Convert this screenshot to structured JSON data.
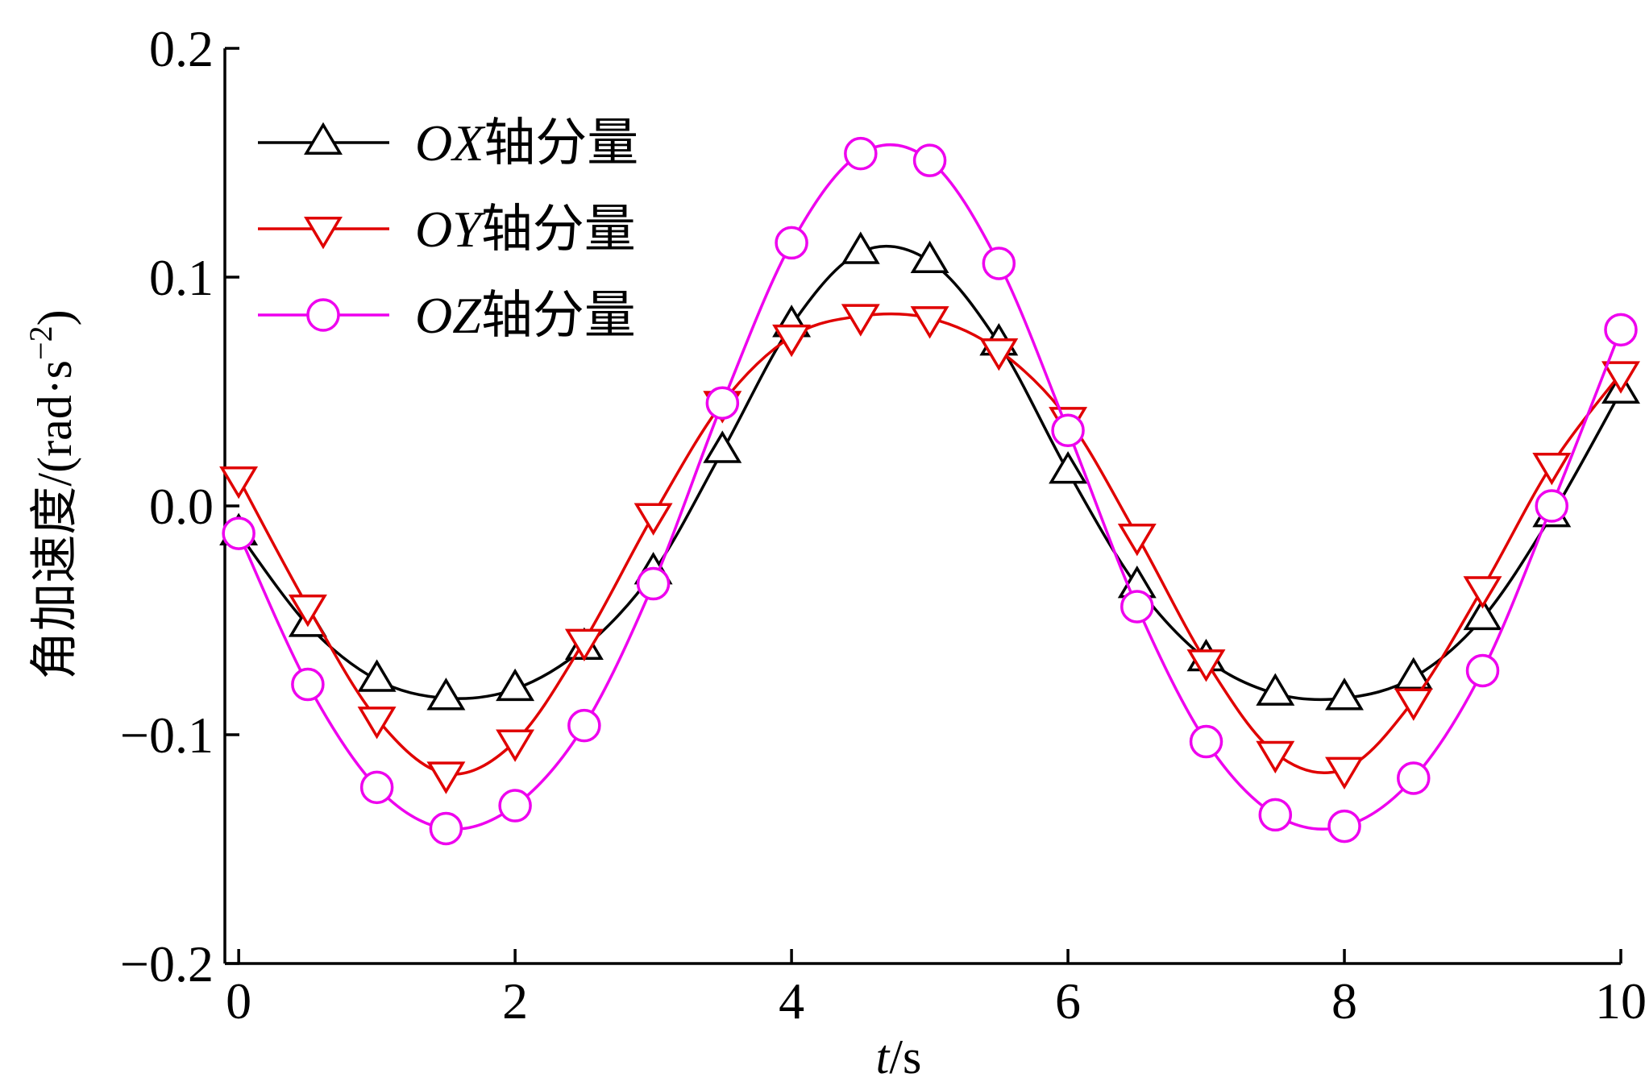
{
  "chart_data": {
    "type": "line",
    "title": "",
    "xlabel": {
      "var": "t",
      "unit": "/s"
    },
    "ylabel": {
      "main": "角加速度/(rad·s",
      "sup": "−2",
      "close": ")"
    },
    "xlim": [
      -0.1,
      10
    ],
    "ylim": [
      -0.2,
      0.2
    ],
    "x_ticks": [
      0,
      2,
      4,
      6,
      8,
      10
    ],
    "x_tick_labels": [
      "0",
      "2",
      "4",
      "6",
      "8",
      "10"
    ],
    "y_ticks": [
      -0.2,
      -0.1,
      0.0,
      0.1,
      0.2
    ],
    "y_tick_labels": [
      "−0.2",
      "−0.1",
      "0.0",
      "0.1",
      "0.2"
    ],
    "grid": false,
    "legend_position": "top-left",
    "x": [
      0,
      0.5,
      1,
      1.5,
      2,
      2.5,
      3,
      3.5,
      4,
      4.5,
      5,
      5.5,
      6,
      6.5,
      7,
      7.5,
      8,
      8.5,
      9,
      9.5,
      10
    ],
    "series": [
      {
        "name_var": "OX",
        "name_suffix": "轴分量",
        "color": "#000000",
        "marker": "triangle-up",
        "values": [
          -0.012,
          -0.052,
          -0.076,
          -0.084,
          -0.08,
          -0.062,
          -0.029,
          0.024,
          0.079,
          0.111,
          0.107,
          0.071,
          0.015,
          -0.035,
          -0.067,
          -0.082,
          -0.084,
          -0.075,
          -0.049,
          -0.004,
          0.05
        ]
      },
      {
        "name_var": "OY",
        "name_suffix": "轴分量",
        "color": "#e00000",
        "marker": "triangle-down",
        "values": [
          0.012,
          -0.044,
          -0.093,
          -0.117,
          -0.103,
          -0.059,
          -0.004,
          0.045,
          0.074,
          0.083,
          0.082,
          0.068,
          0.038,
          -0.013,
          -0.068,
          -0.108,
          -0.115,
          -0.085,
          -0.036,
          0.018,
          0.058
        ]
      },
      {
        "name_var": "OZ",
        "name_suffix": "轴分量",
        "color": "#ee00ee",
        "marker": "circle",
        "values": [
          -0.012,
          -0.078,
          -0.123,
          -0.141,
          -0.131,
          -0.096,
          -0.034,
          0.045,
          0.115,
          0.154,
          0.151,
          0.106,
          0.033,
          -0.044,
          -0.103,
          -0.135,
          -0.14,
          -0.119,
          -0.072,
          0.0,
          0.077
        ]
      }
    ]
  }
}
